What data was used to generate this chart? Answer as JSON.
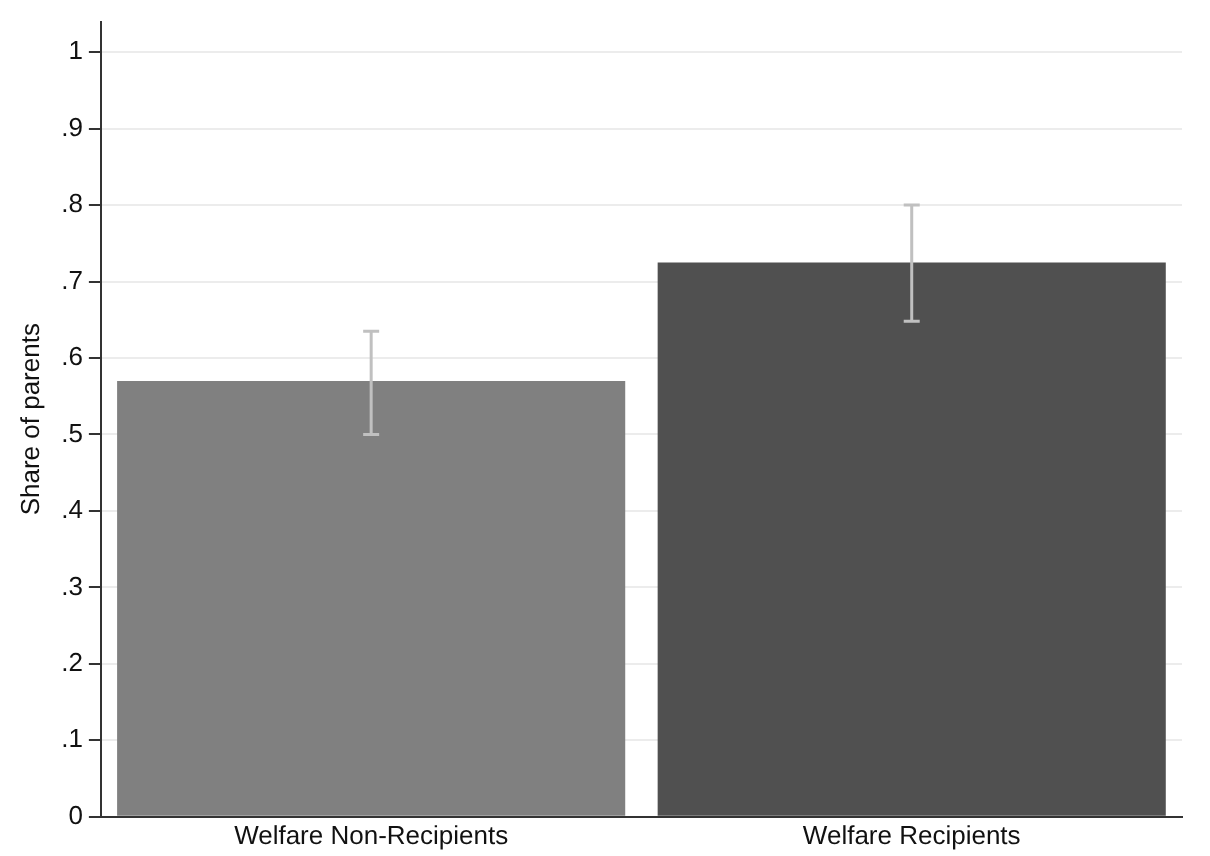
{
  "chart_data": {
    "type": "bar",
    "ylabel": "Share of parents",
    "categories": [
      "Welfare Non-Recipients",
      "Welfare Recipients"
    ],
    "values": [
      0.57,
      0.725
    ],
    "colors": [
      "#808080",
      "#505050"
    ],
    "errors": [
      [
        0.5,
        0.635
      ],
      [
        0.648,
        0.8
      ]
    ],
    "ylim": [
      0,
      1.04
    ],
    "yticks": [
      0,
      {
        "value": 0.1,
        "label": ".1"
      },
      {
        "value": 0.2,
        "label": ".2"
      },
      {
        "value": 0.3,
        "label": ".3"
      },
      {
        "value": 0.4,
        "label": ".4"
      },
      {
        "value": 0.5,
        "label": ".5"
      },
      {
        "value": 0.6,
        "label": ".6"
      },
      {
        "value": 0.7,
        "label": ".7"
      },
      {
        "value": 0.8,
        "label": ".8"
      },
      {
        "value": 0.9,
        "label": ".9"
      },
      1
    ],
    "grid": "y",
    "legend": false
  }
}
